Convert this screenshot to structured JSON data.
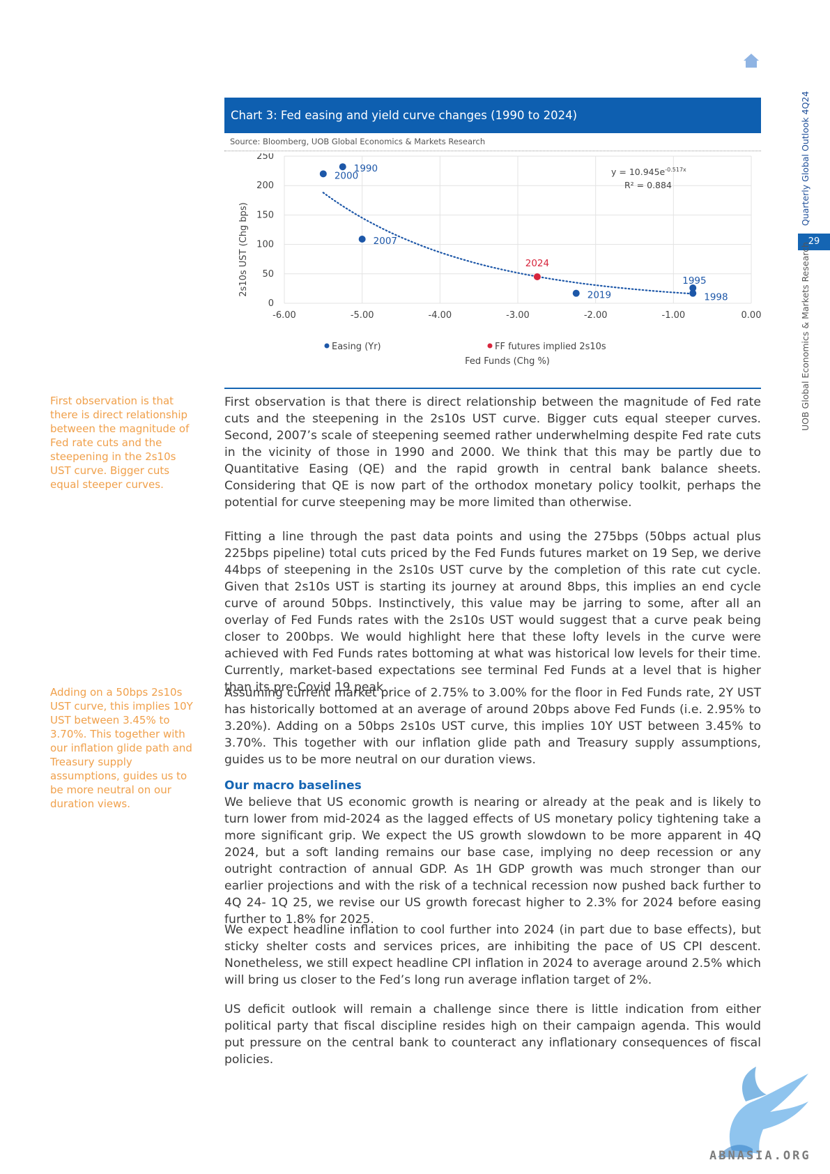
{
  "header": {
    "side_title_top": "Quarterly Global Outlook 4Q24",
    "page_number": "29",
    "side_title_bottom": "UOB Global Economics & Markets Research"
  },
  "chart": {
    "title": "Chart 3: Fed easing and yield curve changes (1990 to 2024)",
    "source": "Source: Bloomberg, UOB Global Economics & Markets Research",
    "equation": "y = 10.945e",
    "equation_exp": "-0.517x",
    "r2": "R² = 0.884"
  },
  "chart_data": {
    "type": "scatter",
    "xlabel": "Fed Funds (Chg %)",
    "ylabel": "2s10s UST (Chg bps)",
    "xlim": [
      -6.0,
      0.0
    ],
    "ylim": [
      0,
      250
    ],
    "x_ticks": [
      "-6.00",
      "-5.00",
      "-4.00",
      "-3.00",
      "-2.00",
      "-1.00",
      "0.00"
    ],
    "y_ticks": [
      "0",
      "50",
      "100",
      "150",
      "200",
      "250"
    ],
    "series": [
      {
        "name": "Easing (Yr)",
        "color": "#1d57a8",
        "points": [
          {
            "label": "1990",
            "x": -5.25,
            "y": 232
          },
          {
            "label": "2000",
            "x": -5.5,
            "y": 220
          },
          {
            "label": "2007",
            "x": -5.0,
            "y": 109
          },
          {
            "label": "1995",
            "x": -0.75,
            "y": 26
          },
          {
            "label": "1998",
            "x": -0.75,
            "y": 17
          },
          {
            "label": "2019",
            "x": -2.25,
            "y": 17
          }
        ]
      },
      {
        "name": "FF futures implied 2s10s",
        "color": "#d7263d",
        "points": [
          {
            "label": "2024",
            "x": -2.75,
            "y": 45
          }
        ]
      }
    ],
    "trendline": {
      "type": "exponential",
      "a": 10.945,
      "b": -0.517,
      "x_from": -5.5,
      "x_to": -0.75
    }
  },
  "notes": {
    "note1": "First observation is that there is direct relationship between the magnitude of Fed rate cuts and the steepening in the 2s10s UST curve. Bigger cuts equal steeper curves.",
    "note2": "Adding on a 50bps 2s10s UST curve, this implies 10Y UST between 3.45% to 3.70%. This together with our inflation glide path and Treasury supply assumptions, guides us to be more neutral on our duration views."
  },
  "body": {
    "p1": "First observation is that there is direct relationship between the magnitude of Fed rate cuts and the steepening in the 2s10s UST curve. Bigger cuts equal steeper curves. Second, 2007’s scale of steepening seemed rather underwhelming despite Fed rate cuts in the vicinity of those in 1990 and 2000. We think that this may be partly due to Quantitative Easing (QE) and the rapid growth in central bank balance sheets. Considering that QE is now part of the orthodox monetary policy toolkit, perhaps the potential for curve steepening may be more limited than otherwise.",
    "p2": "Fitting a line through the past data points and using the 275bps (50bps actual plus 225bps pipeline) total cuts priced by the Fed Funds futures market on 19 Sep, we derive 44bps of steepening in the 2s10s UST curve by the completion of this rate cut cycle. Given that 2s10s UST is starting its journey at around 8bps, this implies an end cycle curve of around 50bps. Instinctively, this value may be jarring to some, after all an overlay of Fed Funds rates with the 2s10s UST would suggest that a curve peak being closer to 200bps. We would highlight here that these lofty levels in the curve were achieved with Fed Funds rates bottoming at what was historical low levels for their time. Currently, market-based expectations see terminal Fed Funds at a level that is higher than its pre-Covid 19 peak.",
    "p3": "Assuming current market price of 2.75% to 3.00% for the floor in Fed Funds rate, 2Y UST has historically bottomed at an average of around 20bps above Fed Funds (i.e. 2.95% to 3.20%). Adding on a 50bps 2s10s UST curve, this implies 10Y UST between 3.45% to 3.70%. This together with our inflation glide path and Treasury supply assumptions, guides us to be more neutral on our duration views.",
    "section_heading": "Our macro baselines",
    "p4": "We believe that US economic growth is nearing or already at the peak and is likely to turn lower from mid-2024 as the lagged effects of US monetary policy tightening take a more significant grip. We expect the US growth slowdown to be more apparent in 4Q 2024, but a soft landing remains our base case, implying no deep recession or any outright contraction of annual GDP. As 1H GDP growth was much stronger than our earlier projections and with the risk of a technical recession now pushed back further to 4Q 24- 1Q 25, we revise our US growth forecast higher to 2.3% for 2024 before easing further to 1.8% for 2025.",
    "p5": "We expect headline inflation to cool further into 2024 (in part due to base effects), but sticky shelter costs and services prices, are inhibiting the pace of US CPI descent. Nonetheless, we still expect headline CPI inflation in 2024 to average around 2.5% which will bring us closer to the Fed’s long run average inflation target of 2%.",
    "p6": "US deficit outlook will remain a challenge since there is little indication from either political party that fiscal discipline resides high on their campaign agenda. This would put pressure on the central bank to counteract any inflationary consequences of fiscal policies."
  },
  "watermark": {
    "text": "ABNASIA.ORG"
  }
}
